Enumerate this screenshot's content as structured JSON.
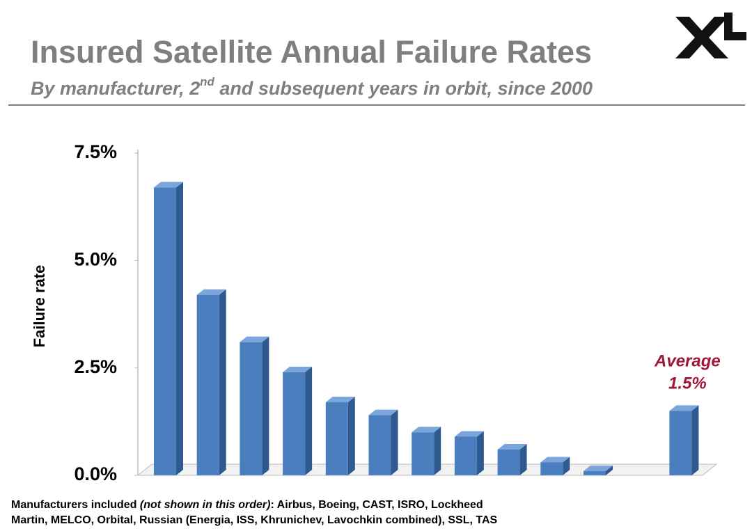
{
  "chart_data": {
    "type": "bar3d",
    "title": "Insured Satellite Annual Failure Rates",
    "subtitle_parts": [
      "By manufacturer, 2",
      "nd",
      " and subsequent years in orbit, since 2000"
    ],
    "ylabel": "Failure rate",
    "categories": [
      null,
      null,
      null,
      null,
      null,
      null,
      null,
      null,
      null,
      null,
      null,
      null,
      null
    ],
    "values": [
      6.7,
      4.2,
      3.1,
      2.4,
      1.7,
      1.4,
      1.0,
      0.9,
      0.6,
      0.3,
      0.1,
      null,
      1.5
    ],
    "value_labels": [
      null,
      null,
      null,
      null,
      null,
      null,
      null,
      null,
      null,
      null,
      null,
      null,
      "1.5%"
    ],
    "annotation": "Average",
    "color": "#4a7ebf",
    "ylim": [
      0,
      7.5
    ],
    "yticks": [
      {
        "value": 0,
        "label": "0.0%"
      },
      {
        "value": 2.5,
        "label": "2.5%"
      },
      {
        "value": 5,
        "label": "5.0%"
      },
      {
        "value": 7.5,
        "label": "7.5%"
      }
    ],
    "grid": false,
    "footnote_parts": [
      "Manufacturers included ",
      "(not shown in this order)",
      ": Airbus, Boeing, CAST, ISRO, Lockheed",
      "Martin, MELCO, Orbital, Russian (Energia, ISS, Khrunichev, Lavochkin combined), SSL, TAS"
    ]
  }
}
